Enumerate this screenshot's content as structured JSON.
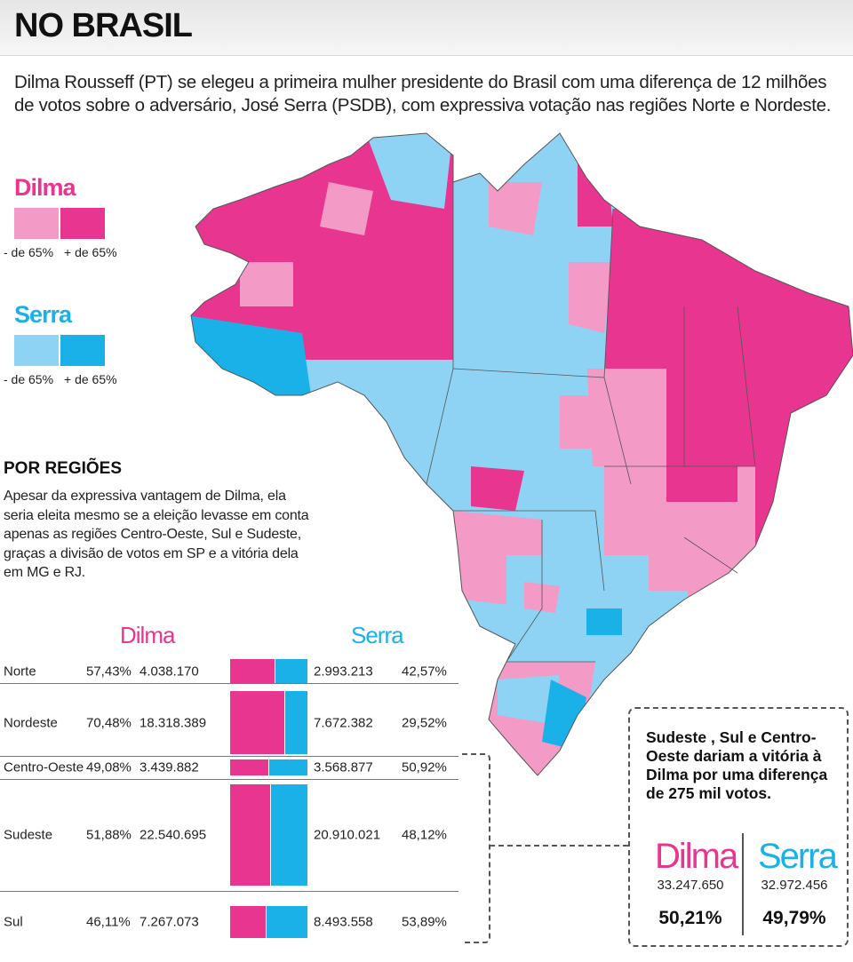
{
  "title": "NO BRASIL",
  "intro": "Dilma Rousseff (PT) se elegeu a primeira mulher presidente do Brasil com uma diferença de 12 milhões de votos sobre o adversário, José Serra (PSDB), com expressiva votação nas regiões Norte e Nordeste.",
  "colors": {
    "dilma_light": "#f39ac7",
    "dilma_dark": "#e8358f",
    "serra_light": "#8fd3f4",
    "serra_dark": "#1ab1e9"
  },
  "legend": {
    "dilma": {
      "name": "Dilma",
      "low": "- de 65%",
      "high": "+ de 65%"
    },
    "serra": {
      "name": "Serra",
      "low": "- de 65%",
      "high": "+ de 65%"
    }
  },
  "regions_section": {
    "title": "POR REGIÕES",
    "text": "Apesar da expressiva vantagem de Dilma, ela seria eleita mesmo se a eleição levasse em conta apenas as regiões Centro-Oeste, Sul e Sudeste, graças a divisão de votos em SP e a vitória dela em MG e RJ.",
    "dilma_header": "Dilma",
    "serra_header": "Serra"
  },
  "regions": [
    {
      "name": "Norte",
      "dilma_pct": "57,43%",
      "dilma_votes": "4.038.170",
      "serra_votes": "2.993.213",
      "serra_pct": "42,57%",
      "dilma_share": 0.5743
    },
    {
      "name": "Nordeste",
      "dilma_pct": "70,48%",
      "dilma_votes": "18.318.389",
      "serra_votes": "7.672.382",
      "serra_pct": "29,52%",
      "dilma_share": 0.7048
    },
    {
      "name": "Centro-Oeste",
      "dilma_pct": "49,08%",
      "dilma_votes": "3.439.882",
      "serra_votes": "3.568.877",
      "serra_pct": "50,92%",
      "dilma_share": 0.4908
    },
    {
      "name": "Sudeste",
      "dilma_pct": "51,88%",
      "dilma_votes": "22.540.695",
      "serra_votes": "20.910.021",
      "serra_pct": "48,12%",
      "dilma_share": 0.5188
    },
    {
      "name": "Sul",
      "dilma_pct": "46,11%",
      "dilma_votes": "7.267.073",
      "serra_votes": "8.493.558",
      "serra_pct": "53,89%",
      "dilma_share": 0.4611
    }
  ],
  "summary": {
    "text": "Sudeste , Sul e Centro-Oeste dariam a vitória à Dilma por uma diferença de 275 mil votos.",
    "dilma": {
      "name": "Dilma",
      "votes": "33.247.650",
      "pct": "50,21%"
    },
    "serra": {
      "name": "Serra",
      "votes": "32.972.456",
      "pct": "49,79%"
    }
  }
}
